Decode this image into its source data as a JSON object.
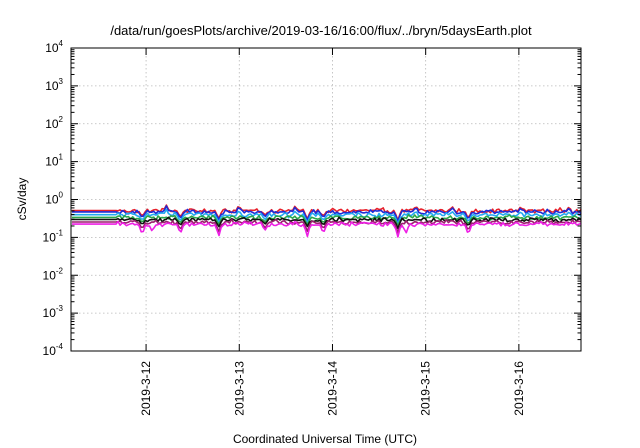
{
  "chart_data": {
    "type": "line",
    "title": "/data/run/goesPlots/archive/2019-03-16/16:00/flux/../bryn/5daysEarth.plot",
    "xlabel": "Coordinated Universal Time (UTC)",
    "ylabel": "cSv/day",
    "y_scale": "log",
    "ylim": [
      0.0001,
      10000
    ],
    "xlim": [
      "2019-03-11 04:40",
      "2019-03-16 16:00"
    ],
    "y_ticks": [
      {
        "value": 0.0001,
        "base": "10",
        "exp": "-4"
      },
      {
        "value": 0.001,
        "base": "10",
        "exp": "-3"
      },
      {
        "value": 0.01,
        "base": "10",
        "exp": "-2"
      },
      {
        "value": 0.1,
        "base": "10",
        "exp": "-1"
      },
      {
        "value": 1,
        "base": "10",
        "exp": "0"
      },
      {
        "value": 10,
        "base": "10",
        "exp": "1"
      },
      {
        "value": 100,
        "base": "10",
        "exp": "2"
      },
      {
        "value": 1000,
        "base": "10",
        "exp": "3"
      },
      {
        "value": 10000,
        "base": "10",
        "exp": "4"
      }
    ],
    "x_ticks": [
      "2019-3-12",
      "2019-3-13",
      "2019-3-14",
      "2019-3-15",
      "2019-3-16"
    ],
    "grid": true,
    "legend": "none",
    "series": [
      {
        "color": "#e8202a",
        "level": 0.5,
        "dips": [
          [
            0.6,
            0.35
          ],
          [
            1.55,
            0.33
          ],
          [
            2.5,
            0.3
          ],
          [
            3.65,
            0.38
          ],
          [
            4.7,
            0.3
          ],
          [
            5.1,
            0.35
          ],
          [
            6.95,
            0.28
          ],
          [
            8.7,
            0.3
          ]
        ],
        "bumps": [
          [
            1.2,
            0.72
          ],
          [
            3.0,
            0.7
          ],
          [
            4.4,
            0.68
          ],
          [
            7.4,
            0.68
          ],
          [
            8.3,
            0.66
          ],
          [
            10.0,
            0.65
          ],
          [
            11.2,
            0.64
          ]
        ]
      },
      {
        "color": "#1f2bd6",
        "level": 0.46,
        "dips": [
          [
            0.6,
            0.32
          ],
          [
            1.55,
            0.3
          ],
          [
            2.5,
            0.28
          ],
          [
            3.65,
            0.35
          ],
          [
            4.7,
            0.28
          ],
          [
            5.1,
            0.32
          ],
          [
            6.95,
            0.26
          ],
          [
            8.7,
            0.28
          ]
        ],
        "bumps": [
          [
            1.2,
            0.68
          ],
          [
            3.0,
            0.66
          ],
          [
            4.4,
            0.64
          ],
          [
            7.4,
            0.64
          ],
          [
            8.3,
            0.62
          ],
          [
            10.0,
            0.61
          ],
          [
            11.2,
            0.6
          ]
        ]
      },
      {
        "color": "#23a9f0",
        "level": 0.39,
        "dips": [
          [
            0.6,
            0.27
          ],
          [
            1.55,
            0.26
          ],
          [
            2.5,
            0.24
          ],
          [
            3.65,
            0.29
          ],
          [
            4.7,
            0.24
          ],
          [
            5.1,
            0.27
          ],
          [
            6.95,
            0.22
          ],
          [
            8.7,
            0.24
          ]
        ],
        "bumps": [
          [
            1.2,
            0.55
          ],
          [
            3.0,
            0.52
          ],
          [
            4.4,
            0.5
          ],
          [
            7.4,
            0.5
          ],
          [
            8.3,
            0.49
          ],
          [
            10.0,
            0.48
          ],
          [
            11.2,
            0.47
          ]
        ]
      },
      {
        "color": "#2aa84a",
        "level": 0.33,
        "dips": [
          [
            0.6,
            0.24
          ],
          [
            1.55,
            0.23
          ],
          [
            2.5,
            0.21
          ],
          [
            3.65,
            0.25
          ],
          [
            4.7,
            0.21
          ],
          [
            5.1,
            0.23
          ],
          [
            6.95,
            0.2
          ],
          [
            8.7,
            0.21
          ]
        ],
        "bumps": []
      },
      {
        "color": "#111111",
        "level": 0.29,
        "dips": [
          [
            0.6,
            0.21
          ],
          [
            1.55,
            0.2
          ],
          [
            2.5,
            0.18
          ],
          [
            3.65,
            0.22
          ],
          [
            4.7,
            0.19
          ],
          [
            5.1,
            0.2
          ],
          [
            6.95,
            0.17
          ],
          [
            8.7,
            0.19
          ]
        ],
        "bumps": []
      },
      {
        "color": "#9c1f6f",
        "level": 0.25,
        "dips": [
          [
            0.6,
            0.16
          ],
          [
            1.55,
            0.15
          ],
          [
            2.5,
            0.13
          ],
          [
            3.65,
            0.17
          ],
          [
            4.7,
            0.14
          ],
          [
            5.1,
            0.16
          ],
          [
            6.95,
            0.13
          ],
          [
            8.7,
            0.14
          ]
        ],
        "bumps": []
      },
      {
        "color": "#ee1fe5",
        "level": 0.22,
        "dips": [
          [
            0.6,
            0.11
          ],
          [
            0.85,
            0.14
          ],
          [
            1.55,
            0.12
          ],
          [
            2.5,
            0.1
          ],
          [
            3.65,
            0.15
          ],
          [
            4.7,
            0.1
          ],
          [
            5.1,
            0.12
          ],
          [
            6.95,
            0.1
          ],
          [
            7.15,
            0.12
          ],
          [
            8.7,
            0.11
          ]
        ],
        "bumps": []
      }
    ]
  }
}
